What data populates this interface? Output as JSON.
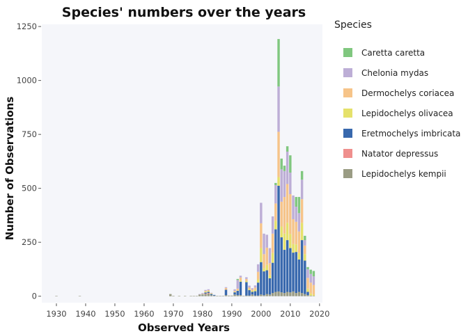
{
  "chart_data": {
    "type": "bar",
    "stacked": true,
    "title": "Species' numbers over the years",
    "xlabel": "Observed Years",
    "ylabel": "Number of Observations",
    "xlim": [
      1925,
      2021
    ],
    "ylim": [
      -30,
      1260
    ],
    "xticks": [
      1930,
      1940,
      1950,
      1960,
      1970,
      1980,
      1990,
      2000,
      2010,
      2020
    ],
    "yticks": [
      0,
      250,
      500,
      750,
      1000,
      1250
    ],
    "ytick_labels": [
      "0",
      "250",
      "500",
      "750",
      "1000",
      "1250"
    ],
    "grid": false,
    "legend_title": "Species",
    "legend_position": "right",
    "years": [
      1930,
      1938,
      1969,
      1970,
      1972,
      1974,
      1976,
      1977,
      1978,
      1979,
      1980,
      1981,
      1982,
      1983,
      1984,
      1985,
      1986,
      1987,
      1988,
      1989,
      1990,
      1991,
      1992,
      1993,
      1994,
      1995,
      1996,
      1997,
      1998,
      1999,
      2000,
      2001,
      2002,
      2003,
      2004,
      2005,
      2006,
      2007,
      2008,
      2009,
      2010,
      2011,
      2012,
      2013,
      2014,
      2015,
      2016,
      2017,
      2018
    ],
    "series": [
      {
        "name": "Lepidochelys kempii",
        "color": "#9a9c84",
        "values": [
          2,
          1,
          10,
          2,
          1,
          1,
          1,
          1,
          2,
          8,
          5,
          10,
          12,
          5,
          3,
          2,
          2,
          2,
          5,
          3,
          3,
          8,
          5,
          5,
          2,
          3,
          3,
          8,
          3,
          3,
          8,
          5,
          10,
          8,
          15,
          20,
          22,
          18,
          15,
          20,
          18,
          22,
          15,
          20,
          15,
          10,
          5,
          3,
          2
        ]
      },
      {
        "name": "Natator depressus",
        "color": "#ef8f8d",
        "values": [
          0,
          0,
          0,
          0,
          0,
          0,
          0,
          0,
          0,
          0,
          0,
          2,
          3,
          0,
          0,
          0,
          0,
          0,
          0,
          0,
          0,
          0,
          0,
          0,
          0,
          0,
          0,
          0,
          0,
          0,
          0,
          0,
          0,
          0,
          0,
          0,
          0,
          0,
          0,
          0,
          0,
          0,
          0,
          0,
          0,
          0,
          0,
          0,
          0
        ]
      },
      {
        "name": "Eretmochelys imbricata",
        "color": "#3868ad",
        "values": [
          0,
          0,
          0,
          0,
          0,
          0,
          0,
          0,
          0,
          0,
          2,
          5,
          5,
          5,
          3,
          0,
          0,
          0,
          25,
          0,
          0,
          10,
          20,
          62,
          0,
          62,
          25,
          12,
          20,
          60,
          150,
          110,
          110,
          75,
          140,
          290,
          490,
          255,
          200,
          240,
          205,
          180,
          190,
          150,
          245,
          155,
          15,
          0,
          0
        ]
      },
      {
        "name": "Lepidochelys olivacea",
        "color": "#e5e16b",
        "values": [
          0,
          0,
          0,
          0,
          0,
          0,
          0,
          0,
          0,
          0,
          2,
          4,
          4,
          2,
          0,
          0,
          0,
          0,
          0,
          0,
          0,
          2,
          2,
          5,
          0,
          5,
          5,
          5,
          7,
          15,
          65,
          15,
          25,
          15,
          45,
          40,
          40,
          50,
          75,
          80,
          65,
          40,
          35,
          30,
          80,
          30,
          15,
          10,
          5
        ]
      },
      {
        "name": "Dermochelys coriacea",
        "color": "#f6c489",
        "values": [
          0,
          0,
          0,
          0,
          0,
          0,
          0,
          0,
          0,
          0,
          2,
          4,
          4,
          2,
          0,
          0,
          0,
          0,
          8,
          0,
          0,
          4,
          8,
          15,
          0,
          10,
          8,
          6,
          10,
          35,
          115,
          65,
          80,
          55,
          90,
          80,
          210,
          115,
          170,
          180,
          185,
          115,
          105,
          100,
          110,
          40,
          50,
          50,
          45
        ]
      },
      {
        "name": "Chelonia mydas",
        "color": "#bdaed6",
        "values": [
          0,
          0,
          0,
          0,
          0,
          0,
          0,
          0,
          0,
          2,
          4,
          4,
          4,
          2,
          0,
          0,
          0,
          0,
          4,
          0,
          0,
          8,
          40,
          8,
          0,
          8,
          8,
          6,
          10,
          35,
          95,
          95,
          60,
          70,
          80,
          85,
          210,
          150,
          120,
          150,
          100,
          110,
          70,
          85,
          90,
          25,
          40,
          40,
          40
        ]
      },
      {
        "name": "Caretta caretta",
        "color": "#80c77f",
        "values": [
          0,
          0,
          0,
          0,
          0,
          0,
          0,
          0,
          0,
          0,
          0,
          0,
          0,
          0,
          0,
          0,
          0,
          0,
          0,
          0,
          0,
          0,
          5,
          0,
          0,
          0,
          0,
          0,
          0,
          0,
          0,
          0,
          0,
          0,
          0,
          10,
          220,
          50,
          25,
          25,
          80,
          0,
          45,
          75,
          40,
          20,
          10,
          20,
          25
        ]
      }
    ],
    "legend_order": [
      "Caretta caretta",
      "Chelonia mydas",
      "Dermochelys coriacea",
      "Lepidochelys olivacea",
      "Eretmochelys imbricata",
      "Natator depressus",
      "Lepidochelys kempii"
    ],
    "colors": {
      "plot_background": "#f5f6fa",
      "text": "#111111",
      "tick": "#444444"
    }
  }
}
